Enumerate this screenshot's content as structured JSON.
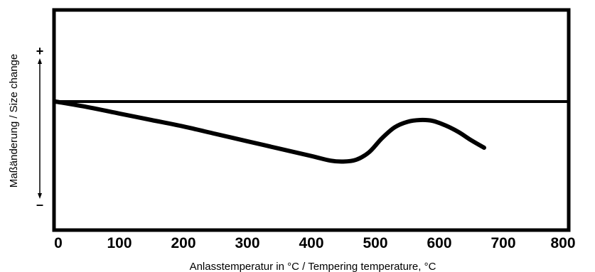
{
  "chart_data": {
    "type": "line",
    "title": "",
    "xlabel": "Anlasstemperatur in °C / Tempering temperature, °C",
    "ylabel": "Maßänderung / Size change",
    "y_plus_label": "+",
    "y_minus_label": "–",
    "xlim": [
      0,
      800
    ],
    "x_ticks": [
      0,
      100,
      200,
      300,
      400,
      500,
      600,
      700,
      800
    ],
    "y_reference": 0,
    "y_units": "relative",
    "grid": false,
    "series": [
      {
        "x": [
          0,
          50,
          100,
          150,
          200,
          250,
          300,
          350,
          400,
          430,
          450,
          470,
          490,
          510,
          530,
          550,
          570,
          590,
          610,
          630,
          650,
          670
        ],
        "y": [
          0,
          -0.06,
          -0.13,
          -0.2,
          -0.27,
          -0.35,
          -0.43,
          -0.51,
          -0.59,
          -0.64,
          -0.65,
          -0.63,
          -0.55,
          -0.4,
          -0.28,
          -0.22,
          -0.2,
          -0.21,
          -0.26,
          -0.33,
          -0.42,
          -0.5
        ]
      }
    ]
  }
}
